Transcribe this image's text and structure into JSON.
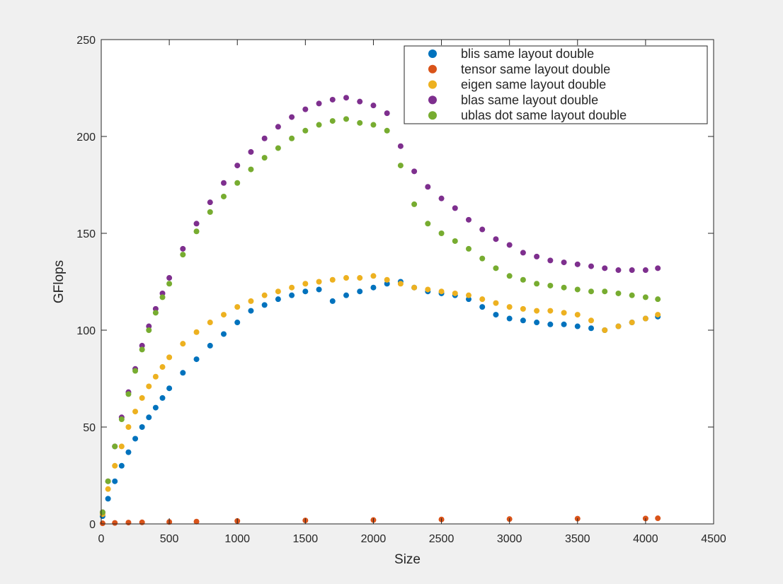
{
  "window": {
    "background": "#f0f0f0"
  },
  "chart_data": {
    "type": "scatter",
    "title": "",
    "xlabel": "Size",
    "ylabel": "GFlops",
    "xlim": [
      0,
      4500
    ],
    "ylim": [
      0,
      250
    ],
    "x_ticks": [
      0,
      500,
      1000,
      1500,
      2000,
      2500,
      3000,
      3500,
      4000,
      4500
    ],
    "y_ticks": [
      0,
      50,
      100,
      150,
      200,
      250
    ],
    "x_tick_labels": [
      "0",
      "500",
      "1000",
      "1500",
      "2000",
      "2500",
      "3000",
      "3500",
      "4000",
      "4500"
    ],
    "y_tick_labels": [
      "0",
      "50",
      "100",
      "150",
      "200",
      "250"
    ],
    "grid": false,
    "legend_position": "top-right",
    "series": [
      {
        "name": "blis same layout double",
        "color": "#0072bd",
        "x": [
          10,
          50,
          100,
          150,
          200,
          250,
          300,
          350,
          400,
          450,
          500,
          600,
          700,
          800,
          900,
          1000,
          1100,
          1200,
          1300,
          1400,
          1500,
          1600,
          1700,
          1800,
          1900,
          2000,
          2100,
          2200,
          2300,
          2400,
          2500,
          2600,
          2700,
          2800,
          2900,
          3000,
          3100,
          3200,
          3300,
          3400,
          3500,
          3600,
          3700,
          3800,
          3900,
          4000,
          4090
        ],
        "y": [
          4,
          13,
          22,
          30,
          37,
          44,
          50,
          55,
          60,
          65,
          70,
          78,
          85,
          92,
          98,
          104,
          110,
          113,
          116,
          118,
          120,
          121,
          115,
          118,
          120,
          122,
          124,
          125,
          122,
          120,
          119,
          118,
          116,
          112,
          108,
          106,
          105,
          104,
          103,
          103,
          102,
          101,
          100,
          102,
          104,
          106,
          107
        ]
      },
      {
        "name": "tensor same layout double",
        "color": "#d95319",
        "x": [
          10,
          100,
          200,
          300,
          500,
          700,
          1000,
          1500,
          2000,
          2500,
          3000,
          3500,
          4000,
          4090
        ],
        "y": [
          0.3,
          0.5,
          0.7,
          0.8,
          1,
          1.2,
          1.5,
          1.8,
          2,
          2.3,
          2.5,
          2.7,
          2.8,
          2.9
        ]
      },
      {
        "name": "eigen same layout double",
        "color": "#edb120",
        "x": [
          10,
          50,
          100,
          150,
          200,
          250,
          300,
          350,
          400,
          450,
          500,
          600,
          700,
          800,
          900,
          1000,
          1100,
          1200,
          1300,
          1400,
          1500,
          1600,
          1700,
          1800,
          1900,
          2000,
          2100,
          2200,
          2300,
          2400,
          2500,
          2600,
          2700,
          2800,
          2900,
          3000,
          3100,
          3200,
          3300,
          3400,
          3500,
          3600,
          3700,
          3800,
          3900,
          4000,
          4090
        ],
        "y": [
          5,
          18,
          30,
          40,
          50,
          58,
          65,
          71,
          76,
          81,
          86,
          93,
          99,
          104,
          108,
          112,
          115,
          118,
          120,
          122,
          124,
          125,
          126,
          127,
          127,
          128,
          126,
          124,
          122,
          121,
          120,
          119,
          118,
          116,
          114,
          112,
          111,
          110,
          110,
          109,
          108,
          105,
          100,
          102,
          104,
          106,
          108
        ]
      },
      {
        "name": "blas same layout double",
        "color": "#7e2f8e",
        "x": [
          10,
          50,
          100,
          150,
          200,
          250,
          300,
          350,
          400,
          450,
          500,
          600,
          700,
          800,
          900,
          1000,
          1100,
          1200,
          1300,
          1400,
          1500,
          1600,
          1700,
          1800,
          1900,
          2000,
          2100,
          2200,
          2300,
          2400,
          2500,
          2600,
          2700,
          2800,
          2900,
          3000,
          3100,
          3200,
          3300,
          3400,
          3500,
          3600,
          3700,
          3800,
          3900,
          4000,
          4090
        ],
        "y": [
          6,
          22,
          40,
          55,
          68,
          80,
          92,
          102,
          111,
          119,
          127,
          142,
          155,
          166,
          176,
          185,
          192,
          199,
          205,
          210,
          214,
          217,
          219,
          220,
          218,
          216,
          212,
          195,
          182,
          174,
          168,
          163,
          157,
          152,
          147,
          144,
          140,
          138,
          136,
          135,
          134,
          133,
          132,
          131,
          131,
          131,
          132
        ]
      },
      {
        "name": "ublas dot same layout double",
        "color": "#77ac30",
        "x": [
          10,
          50,
          100,
          150,
          200,
          250,
          300,
          350,
          400,
          450,
          500,
          600,
          700,
          800,
          900,
          1000,
          1100,
          1200,
          1300,
          1400,
          1500,
          1600,
          1700,
          1800,
          1900,
          2000,
          2100,
          2200,
          2300,
          2400,
          2500,
          2600,
          2700,
          2800,
          2900,
          3000,
          3100,
          3200,
          3300,
          3400,
          3500,
          3600,
          3700,
          3800,
          3900,
          4000,
          4090
        ],
        "y": [
          6,
          22,
          40,
          54,
          67,
          79,
          90,
          100,
          109,
          117,
          124,
          139,
          151,
          161,
          169,
          176,
          183,
          189,
          194,
          199,
          203,
          206,
          208,
          209,
          207,
          206,
          203,
          185,
          165,
          155,
          150,
          146,
          142,
          137,
          132,
          128,
          126,
          124,
          123,
          122,
          121,
          120,
          120,
          119,
          118,
          117,
          116
        ]
      }
    ]
  }
}
